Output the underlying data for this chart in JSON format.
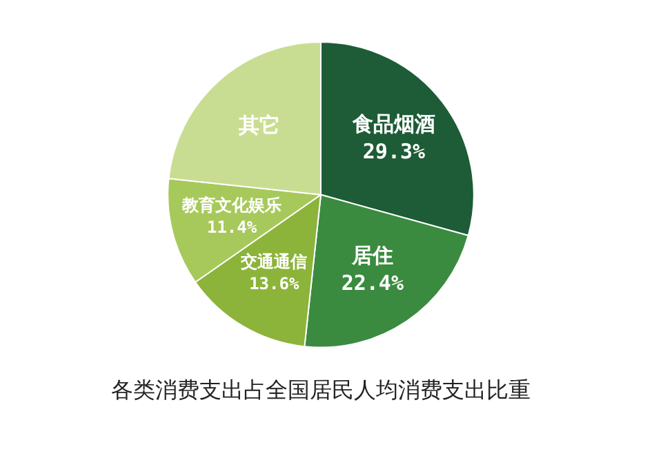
{
  "chart_data": {
    "type": "pie",
    "title": "各类消费支出占全国居民人均消费支出比重",
    "categories": [
      "食品烟酒",
      "居住",
      "交通通信",
      "教育文化娱乐",
      "其它"
    ],
    "values": [
      29.3,
      22.4,
      13.6,
      11.4,
      23.3
    ],
    "colors": [
      "#1d5c36",
      "#3a8b3f",
      "#8cb43a",
      "#a7c95b",
      "#c9dd92"
    ],
    "value_labels": [
      "29.3%",
      "22.4%",
      "13.6%",
      "11.4%",
      null
    ],
    "legend": false
  }
}
